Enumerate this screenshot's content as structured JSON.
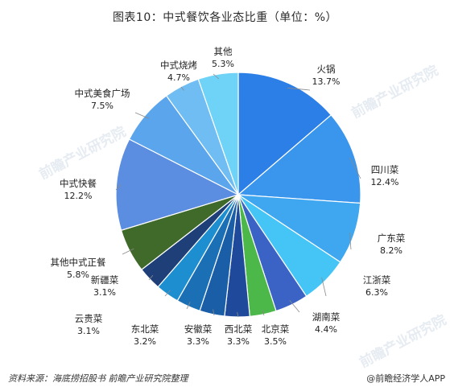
{
  "title": "图表10：中式餐饮各业态比重（单位：%）",
  "chart_data": {
    "type": "pie",
    "title": "图表10：中式餐饮各业态比重（单位：%）",
    "unit": "%",
    "slices": [
      {
        "label": "火锅",
        "value": 13.7,
        "value_text": "13.7%",
        "color": "#2c7fe6"
      },
      {
        "label": "四川菜",
        "value": 12.4,
        "value_text": "12.4%",
        "color": "#3a95ec"
      },
      {
        "label": "广东菜",
        "value": 8.2,
        "value_text": "8.2%",
        "color": "#3fa6f0"
      },
      {
        "label": "江浙菜",
        "value": 6.3,
        "value_text": "6.3%",
        "color": "#45c5f6"
      },
      {
        "label": "湖南菜",
        "value": 4.4,
        "value_text": "4.4%",
        "color": "#3b63c6"
      },
      {
        "label": "北京菜",
        "value": 3.5,
        "value_text": "3.5%",
        "color": "#4cb84a"
      },
      {
        "label": "西北菜",
        "value": 3.3,
        "value_text": "3.3%",
        "color": "#1f4a9c"
      },
      {
        "label": "安徽菜",
        "value": 3.3,
        "value_text": "3.3%",
        "color": "#1a5ea8"
      },
      {
        "label": "东北菜",
        "value": 3.2,
        "value_text": "3.2%",
        "color": "#1b6fb5"
      },
      {
        "label": "云贵菜",
        "value": 3.1,
        "value_text": "3.1%",
        "color": "#1d8fd0"
      },
      {
        "label": "新疆菜",
        "value": 3.1,
        "value_text": "3.1%",
        "color": "#1e3f78"
      },
      {
        "label": "其他中式正餐",
        "value": 5.8,
        "value_text": "5.8%",
        "color": "#3f6a2a"
      },
      {
        "label": "中式快餐",
        "value": 12.2,
        "value_text": "12.2%",
        "color": "#5b8de0"
      },
      {
        "label": "中式美食广场",
        "value": 7.5,
        "value_text": "7.5%",
        "color": "#5aa5ec"
      },
      {
        "label": "中式烧烤",
        "value": 4.7,
        "value_text": "4.7%",
        "color": "#6fbdf3"
      },
      {
        "label": "其他",
        "value": 5.3,
        "value_text": "5.3%",
        "color": "#6fd3f8"
      }
    ]
  },
  "footer": {
    "source": "资料来源：海底捞招股书  前瞻产业研究院整理",
    "brand": "@前瞻经济学人APP"
  },
  "watermarks": [
    "前瞻产业研究院",
    "前瞻产业研究院",
    "前瞻产业研究院"
  ]
}
